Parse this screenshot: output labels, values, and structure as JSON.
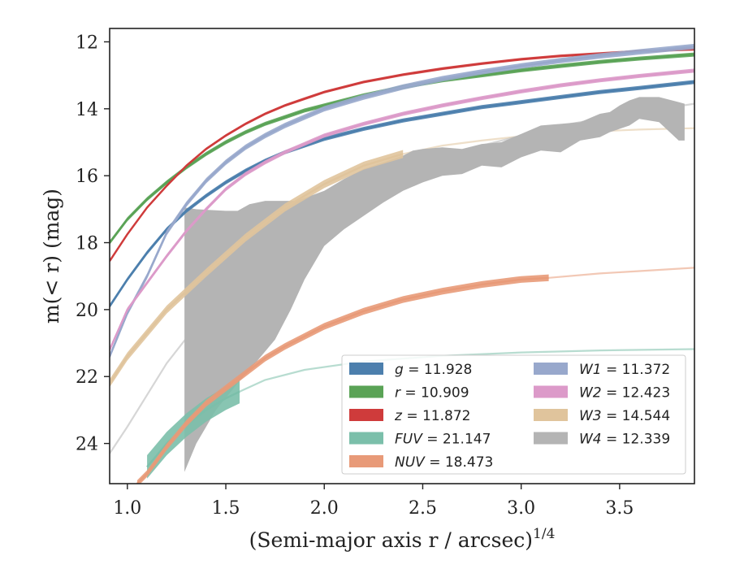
{
  "chart_data": {
    "type": "line",
    "xlabel": "(Semi-major axis r / arcsec)",
    "xlabel_sup": "1/4",
    "ylabel": "m(< r) (mag)",
    "xlim": [
      0.91,
      3.88
    ],
    "ylim": [
      25.2,
      11.6
    ],
    "y_inverted": true,
    "x_ticks": [
      1.0,
      1.5,
      2.0,
      2.5,
      3.0,
      3.5
    ],
    "x_tick_labels": [
      "1.0",
      "1.5",
      "2.0",
      "2.5",
      "3.0",
      "3.5"
    ],
    "y_ticks": [
      12,
      14,
      16,
      18,
      20,
      22,
      24
    ],
    "y_tick_labels": [
      "12",
      "14",
      "16",
      "18",
      "20",
      "22",
      "24"
    ],
    "grid": false,
    "legend_position": "lower-right",
    "series": [
      {
        "name": "g = 11.928",
        "sym": "g",
        "val": "11.928",
        "color": "#4c7fad",
        "band": 0.06,
        "x": [
          0.91,
          1.0,
          1.1,
          1.2,
          1.3,
          1.4,
          1.5,
          1.6,
          1.7,
          1.8,
          1.9,
          2.0,
          2.2,
          2.4,
          2.6,
          2.8,
          3.0,
          3.2,
          3.4,
          3.6,
          3.88
        ],
        "y": [
          19.9,
          19.1,
          18.3,
          17.6,
          17.05,
          16.6,
          16.2,
          15.85,
          15.55,
          15.3,
          15.1,
          14.9,
          14.6,
          14.35,
          14.15,
          13.95,
          13.8,
          13.65,
          13.5,
          13.38,
          13.2
        ],
        "solid_until": 3.88
      },
      {
        "name": "r = 10.909",
        "sym": "r",
        "val": "10.909",
        "color": "#5aa356",
        "band": 0.06,
        "x": [
          0.91,
          1.0,
          1.1,
          1.2,
          1.3,
          1.4,
          1.5,
          1.6,
          1.7,
          1.8,
          1.9,
          2.0,
          2.2,
          2.4,
          2.6,
          2.8,
          3.0,
          3.2,
          3.4,
          3.6,
          3.88
        ],
        "y": [
          18.0,
          17.3,
          16.7,
          16.2,
          15.75,
          15.35,
          15.0,
          14.7,
          14.45,
          14.25,
          14.05,
          13.9,
          13.6,
          13.35,
          13.15,
          13.0,
          12.85,
          12.72,
          12.6,
          12.5,
          12.38
        ],
        "solid_until": 3.88
      },
      {
        "name": "z = 11.872",
        "sym": "z",
        "val": "11.872",
        "color": "#cf3b3b",
        "band": 0.04,
        "x": [
          0.91,
          1.0,
          1.1,
          1.2,
          1.3,
          1.4,
          1.5,
          1.6,
          1.7,
          1.8,
          1.9,
          2.0,
          2.2,
          2.4,
          2.6,
          2.8,
          3.0,
          3.2,
          3.4,
          3.6,
          3.88
        ],
        "y": [
          18.55,
          17.75,
          16.95,
          16.3,
          15.7,
          15.2,
          14.8,
          14.45,
          14.15,
          13.9,
          13.7,
          13.5,
          13.2,
          12.98,
          12.8,
          12.65,
          12.52,
          12.42,
          12.35,
          12.28,
          12.22
        ],
        "solid_until": 3.88
      },
      {
        "name": "FUV = 21.147",
        "sym": "FUV",
        "val": "21.147",
        "color": "#7bbfaa",
        "band": 0.35,
        "x": [
          1.1,
          1.2,
          1.3,
          1.4,
          1.5,
          1.57,
          1.7,
          1.9,
          2.2,
          2.6,
          3.0,
          3.4,
          3.88
        ],
        "y": [
          24.7,
          24.0,
          23.45,
          23.0,
          22.65,
          22.45,
          22.1,
          21.8,
          21.55,
          21.38,
          21.28,
          21.22,
          21.18
        ],
        "solid_until": 1.57
      },
      {
        "name": "NUV = 18.473",
        "sym": "NUV",
        "val": "18.473",
        "color": "#e89a78",
        "band": 0.1,
        "x": [
          1.05,
          1.1,
          1.2,
          1.3,
          1.4,
          1.5,
          1.6,
          1.7,
          1.8,
          1.9,
          2.0,
          2.2,
          2.4,
          2.6,
          2.8,
          3.0,
          3.14,
          3.4,
          3.6,
          3.88
        ],
        "y": [
          25.2,
          24.9,
          24.1,
          23.4,
          22.8,
          22.35,
          21.9,
          21.45,
          21.1,
          20.8,
          20.5,
          20.05,
          19.7,
          19.45,
          19.25,
          19.1,
          19.05,
          18.92,
          18.85,
          18.75
        ],
        "solid_until": 3.14
      },
      {
        "name": "W1 = 11.372",
        "sym": "W1",
        "val": "11.372",
        "color": "#98a8cc",
        "band": 0.08,
        "x": [
          0.91,
          1.0,
          1.1,
          1.2,
          1.3,
          1.4,
          1.5,
          1.6,
          1.7,
          1.8,
          1.9,
          2.0,
          2.2,
          2.4,
          2.6,
          2.8,
          3.0,
          3.2,
          3.4,
          3.6,
          3.88
        ],
        "y": [
          21.4,
          20.1,
          19.0,
          17.7,
          16.85,
          16.15,
          15.6,
          15.15,
          14.8,
          14.5,
          14.25,
          14.0,
          13.65,
          13.35,
          13.1,
          12.9,
          12.72,
          12.56,
          12.42,
          12.3,
          12.14
        ],
        "solid_until": 3.88
      },
      {
        "name": "W2 = 12.423",
        "sym": "W2",
        "val": "12.423",
        "color": "#dc9ac9",
        "band": 0.06,
        "x": [
          0.91,
          1.0,
          1.1,
          1.2,
          1.3,
          1.4,
          1.5,
          1.6,
          1.7,
          1.8,
          1.9,
          2.0,
          2.2,
          2.4,
          2.6,
          2.8,
          3.0,
          3.2,
          3.4,
          3.6,
          3.88
        ],
        "y": [
          21.2,
          20.0,
          19.2,
          18.4,
          17.65,
          17.0,
          16.4,
          15.95,
          15.6,
          15.3,
          15.05,
          14.8,
          14.45,
          14.15,
          13.9,
          13.68,
          13.48,
          13.3,
          13.15,
          13.02,
          12.86
        ],
        "solid_until": 3.88
      },
      {
        "name": "W3 = 14.544",
        "sym": "W3",
        "val": "14.544",
        "color": "#e0c49c",
        "band": 0.12,
        "x": [
          0.91,
          1.0,
          1.2,
          1.4,
          1.6,
          1.8,
          2.0,
          2.2,
          2.4,
          2.6,
          2.8,
          3.0,
          3.2,
          3.4,
          3.6,
          3.88
        ],
        "y": [
          22.2,
          21.4,
          20.0,
          18.9,
          17.85,
          16.95,
          16.25,
          15.7,
          15.35,
          15.1,
          14.95,
          14.82,
          14.73,
          14.67,
          14.62,
          14.58
        ],
        "solid_until": 2.4
      },
      {
        "name": "W4 = 12.339",
        "sym": "W4",
        "val": "12.339",
        "color": "#b4b4b4",
        "band": 0,
        "x": [
          0.91,
          1.0,
          1.2,
          1.4,
          1.6,
          1.8,
          2.0,
          2.4,
          2.8,
          3.2,
          3.6,
          3.88
        ],
        "y": [
          24.3,
          23.5,
          21.6,
          20.1,
          18.9,
          17.9,
          17.1,
          16.0,
          15.1,
          14.5,
          14.1,
          13.85
        ],
        "solid_until": 0.91,
        "region_top": [
          [
            1.29,
            16.95
          ],
          [
            1.35,
            17.0
          ],
          [
            1.5,
            17.05
          ],
          [
            1.56,
            17.05
          ],
          [
            1.62,
            16.85
          ],
          [
            1.7,
            16.75
          ],
          [
            1.86,
            16.75
          ],
          [
            2.0,
            16.45
          ],
          [
            2.1,
            16.1
          ],
          [
            2.2,
            15.8
          ],
          [
            2.3,
            15.6
          ],
          [
            2.4,
            15.4
          ],
          [
            2.45,
            15.25
          ],
          [
            2.5,
            15.2
          ],
          [
            2.6,
            15.15
          ],
          [
            2.7,
            15.2
          ],
          [
            2.8,
            15.05
          ],
          [
            2.9,
            15.0
          ],
          [
            3.0,
            14.75
          ],
          [
            3.1,
            14.5
          ],
          [
            3.2,
            14.45
          ],
          [
            3.3,
            14.4
          ],
          [
            3.4,
            14.15
          ],
          [
            3.45,
            14.1
          ],
          [
            3.5,
            13.9
          ],
          [
            3.55,
            13.75
          ],
          [
            3.6,
            13.65
          ],
          [
            3.7,
            13.65
          ],
          [
            3.8,
            13.8
          ],
          [
            3.83,
            13.85
          ]
        ],
        "region_bottom": [
          [
            1.29,
            24.85
          ],
          [
            1.35,
            24.0
          ],
          [
            1.45,
            23.0
          ],
          [
            1.56,
            22.2
          ],
          [
            1.65,
            21.6
          ],
          [
            1.75,
            20.9
          ],
          [
            1.83,
            20.0
          ],
          [
            1.9,
            19.1
          ],
          [
            2.0,
            18.1
          ],
          [
            2.1,
            17.6
          ],
          [
            2.2,
            17.2
          ],
          [
            2.3,
            16.8
          ],
          [
            2.4,
            16.45
          ],
          [
            2.5,
            16.2
          ],
          [
            2.6,
            16.0
          ],
          [
            2.7,
            15.95
          ],
          [
            2.8,
            15.7
          ],
          [
            2.9,
            15.75
          ],
          [
            3.0,
            15.45
          ],
          [
            3.1,
            15.25
          ],
          [
            3.2,
            15.3
          ],
          [
            3.3,
            14.95
          ],
          [
            3.4,
            14.85
          ],
          [
            3.45,
            14.7
          ],
          [
            3.5,
            14.6
          ],
          [
            3.55,
            14.5
          ],
          [
            3.6,
            14.3
          ],
          [
            3.7,
            14.4
          ],
          [
            3.8,
            14.95
          ],
          [
            3.83,
            14.95
          ]
        ]
      }
    ]
  }
}
